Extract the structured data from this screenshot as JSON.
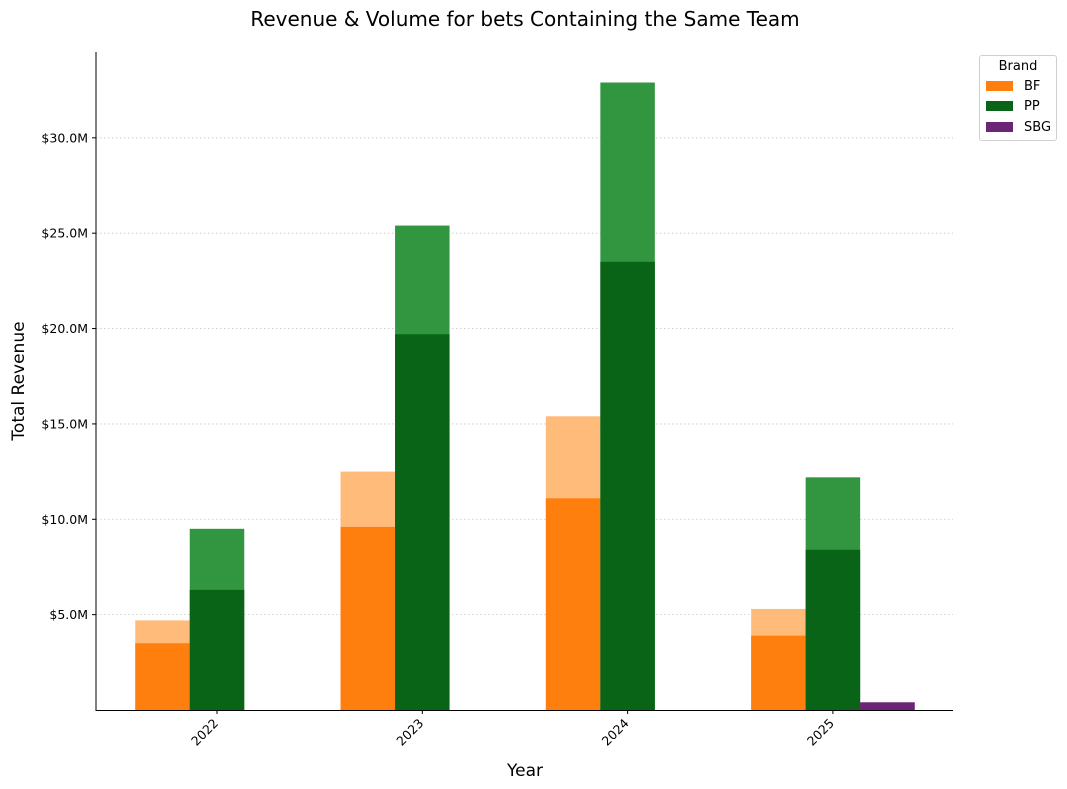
{
  "chart_data": {
    "type": "bar",
    "title": "Revenue & Volume for bets Containing the Same Team",
    "xlabel": "Year",
    "ylabel": "Total Revenue",
    "categories": [
      "2022",
      "2023",
      "2024",
      "2025"
    ],
    "ylim": [
      0,
      34.5
    ],
    "yticks": [
      5,
      10,
      15,
      20,
      25,
      30
    ],
    "ytick_labels": [
      "$5.0M",
      "$10.0M",
      "$15.0M",
      "$20.0M",
      "$25.0M",
      "$30.0M"
    ],
    "grid": "horizontal, dotted",
    "legend": {
      "title": "Brand",
      "placement": "outside top-right"
    },
    "series": [
      {
        "name": "BF",
        "color": "#ff7f0e",
        "light_color": "#ffbb7a",
        "revenue": [
          3.5,
          9.6,
          11.1,
          3.9
        ],
        "total": [
          4.7,
          12.5,
          15.4,
          5.3
        ]
      },
      {
        "name": "PP",
        "color": "#0a6417",
        "light_color": "#329641",
        "revenue": [
          6.3,
          19.7,
          23.5,
          8.4
        ],
        "total": [
          9.5,
          25.4,
          32.9,
          12.2
        ]
      },
      {
        "name": "SBG",
        "color": "#6b2476",
        "light_color": "#6b2476",
        "revenue": [
          null,
          null,
          null,
          0.4
        ],
        "total": [
          null,
          null,
          null,
          0.4
        ]
      }
    ]
  }
}
